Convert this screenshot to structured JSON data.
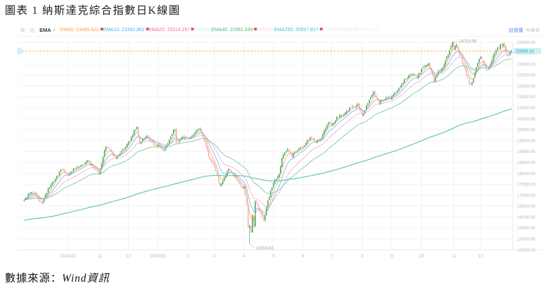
{
  "document": {
    "title": "圖表 1 納斯達克綜合指數日K線圖",
    "source_prefix": "數據來源：",
    "source_name": "Wind資訊"
  },
  "toolbar": {
    "settings_icon": "⚙",
    "visibility_icon": "◎",
    "indicator_group": "EMA",
    "dropdown_arrow": "∨",
    "items": [
      {
        "label": "EMA5:",
        "value": "23485.621",
        "color": "#ff9d45",
        "active": true
      },
      {
        "label": "EMA10:",
        "value": "23392.962",
        "color": "#54aef0",
        "active": true
      },
      {
        "label": "EMA20:",
        "value": "23114.257",
        "color": "#ee6fb0",
        "active": true
      },
      {
        "label": "EMA30:",
        "value": "",
        "color": "#8fd39b",
        "active": false
      },
      {
        "label": "EMA40:",
        "value": "22961.049",
        "color": "#4fb87a",
        "active": true
      },
      {
        "label": "EMA60:",
        "value": "",
        "color": "#f2a0a0",
        "active": false
      },
      {
        "label": "EMA250:",
        "value": "20937.817",
        "color": "#3ec1c5",
        "active": true
      },
      {
        "label": "EMA90:",
        "value": "",
        "color": "#f6c0da",
        "active": false
      },
      {
        "label": "EMA120:",
        "value": "",
        "color": "#c9b6f0",
        "active": false
      },
      {
        "label": "EMA200:",
        "value": "",
        "color": "#f5d6a0",
        "active": false
      }
    ],
    "adjust_mode": "前復權",
    "right_icons": [
      {
        "name": "refresh-icon",
        "glyph": "⟲"
      },
      {
        "name": "zoom-in-icon",
        "glyph": "⊕"
      },
      {
        "name": "zoom-out-icon",
        "glyph": "⊖"
      }
    ]
  },
  "chart_data": {
    "type": "candlestick",
    "title": "納斯達克綜合指數日K線",
    "last_price": 23593.1,
    "last_price_label": "23593.10",
    "high_annotation": {
      "day": 304,
      "price": 24019.99,
      "label": "24019.99"
    },
    "low_annotation": {
      "day": 160,
      "price": 14784.03,
      "label": "14784.03"
    },
    "y_axis": {
      "min": 14500,
      "max": 24000,
      "step": 500,
      "format_decimals": 2
    },
    "x_axis": {
      "ticks": [
        {
          "day": 31,
          "label": "2024/10"
        },
        {
          "day": 54,
          "label": "11"
        },
        {
          "day": 74,
          "label": "12"
        },
        {
          "day": 95,
          "label": "2025/01"
        },
        {
          "day": 116,
          "label": "2"
        },
        {
          "day": 135,
          "label": "3"
        },
        {
          "day": 156,
          "label": "4"
        },
        {
          "day": 177,
          "label": "5"
        },
        {
          "day": 198,
          "label": "6"
        },
        {
          "day": 218,
          "label": "7"
        },
        {
          "day": 240,
          "label": "8"
        },
        {
          "day": 261,
          "label": "9"
        },
        {
          "day": 282,
          "label": "10"
        },
        {
          "day": 305,
          "label": "11"
        },
        {
          "day": 324,
          "label": "12"
        }
      ]
    },
    "days_total": 347,
    "close_anchors": [
      [
        0,
        16780
      ],
      [
        4,
        17090
      ],
      [
        8,
        17120
      ],
      [
        10,
        16760
      ],
      [
        13,
        16690
      ],
      [
        15,
        17025
      ],
      [
        20,
        17600
      ],
      [
        27,
        18190
      ],
      [
        31,
        17950
      ],
      [
        37,
        18280
      ],
      [
        45,
        18570
      ],
      [
        53,
        17990
      ],
      [
        54,
        18240
      ],
      [
        58,
        19290
      ],
      [
        65,
        18720
      ],
      [
        70,
        19060
      ],
      [
        74,
        19404
      ],
      [
        80,
        20170
      ],
      [
        82,
        19390
      ],
      [
        87,
        19720
      ],
      [
        92,
        19280
      ],
      [
        95,
        19280
      ],
      [
        99,
        18990
      ],
      [
        107,
        20050
      ],
      [
        108,
        19341
      ],
      [
        113,
        19690
      ],
      [
        116,
        19590
      ],
      [
        120,
        19790
      ],
      [
        125,
        20056
      ],
      [
        132,
        18580
      ],
      [
        135,
        18350
      ],
      [
        139,
        17400
      ],
      [
        145,
        18190
      ],
      [
        150,
        17800
      ],
      [
        155,
        17300
      ],
      [
        156,
        17450
      ],
      [
        158,
        16550
      ],
      [
        159,
        15590
      ],
      [
        160,
        15600
      ],
      [
        161,
        15270
      ],
      [
        162,
        16120
      ],
      [
        163,
        15590
      ],
      [
        164,
        16724
      ],
      [
        167,
        16300
      ],
      [
        170,
        15870
      ],
      [
        173,
        16710
      ],
      [
        177,
        17600
      ],
      [
        181,
        17928
      ],
      [
        183,
        18708
      ],
      [
        187,
        19150
      ],
      [
        190,
        18800
      ],
      [
        195,
        19114
      ],
      [
        198,
        19240
      ],
      [
        203,
        19600
      ],
      [
        207,
        19447
      ],
      [
        211,
        19546
      ],
      [
        214,
        20100
      ],
      [
        217,
        20370
      ],
      [
        218,
        20203
      ],
      [
        223,
        20610
      ],
      [
        227,
        20700
      ],
      [
        232,
        21020
      ],
      [
        237,
        21108
      ],
      [
        240,
        20650
      ],
      [
        244,
        21243
      ],
      [
        248,
        21713
      ],
      [
        252,
        21173
      ],
      [
        256,
        21450
      ],
      [
        260,
        21456
      ],
      [
        261,
        21500
      ],
      [
        265,
        21800
      ],
      [
        270,
        22260
      ],
      [
        275,
        22573
      ],
      [
        279,
        22400
      ],
      [
        282,
        22755
      ],
      [
        287,
        23043
      ],
      [
        291,
        22204
      ],
      [
        293,
        22521
      ],
      [
        298,
        22954
      ],
      [
        302,
        23637
      ],
      [
        304,
        23958
      ],
      [
        305,
        23725
      ],
      [
        307,
        23835
      ],
      [
        310,
        23300
      ],
      [
        313,
        22750
      ],
      [
        316,
        22080
      ],
      [
        318,
        22120
      ],
      [
        321,
        22900
      ],
      [
        324,
        23365
      ],
      [
        326,
        23100
      ],
      [
        329,
        22700
      ],
      [
        332,
        23200
      ],
      [
        335,
        23600
      ],
      [
        338,
        23860
      ],
      [
        340,
        23960
      ],
      [
        343,
        23380
      ],
      [
        345,
        23500
      ],
      [
        346,
        23593.1
      ]
    ],
    "special_days": {
      "160": {
        "open": 15500,
        "close": 15600,
        "low": 14784.03
      },
      "304": {
        "high": 24019.99
      },
      "346": {
        "close": 23593.1
      }
    },
    "ema_series": [
      {
        "name": "EMA5",
        "alpha": 0.3333,
        "color": "#ff9d45",
        "width": 0.7
      },
      {
        "name": "EMA10",
        "alpha": 0.1818,
        "color": "#54aef0",
        "width": 0.7
      },
      {
        "name": "EMA20",
        "alpha": 0.0952,
        "color": "#ee9fce",
        "width": 0.7
      },
      {
        "name": "EMA40",
        "alpha": 0.0488,
        "color": "#6cc48b",
        "width": 0.8
      },
      {
        "name": "EMA250",
        "alpha": 0.008,
        "color": "#52c2b0",
        "width": 1.1,
        "seed": 15850
      }
    ],
    "colors": {
      "up": "#2e9e58",
      "down": "#f2aaa4",
      "grid": "#f0f2f6",
      "axis_line": "#e6eaf0",
      "axis_text": "#aeb6c4",
      "current_line": "#f5a742",
      "tag_bg": "#d2eff5",
      "tag_text": "#1ea5b8",
      "annotation": "#9aa2ae"
    }
  }
}
